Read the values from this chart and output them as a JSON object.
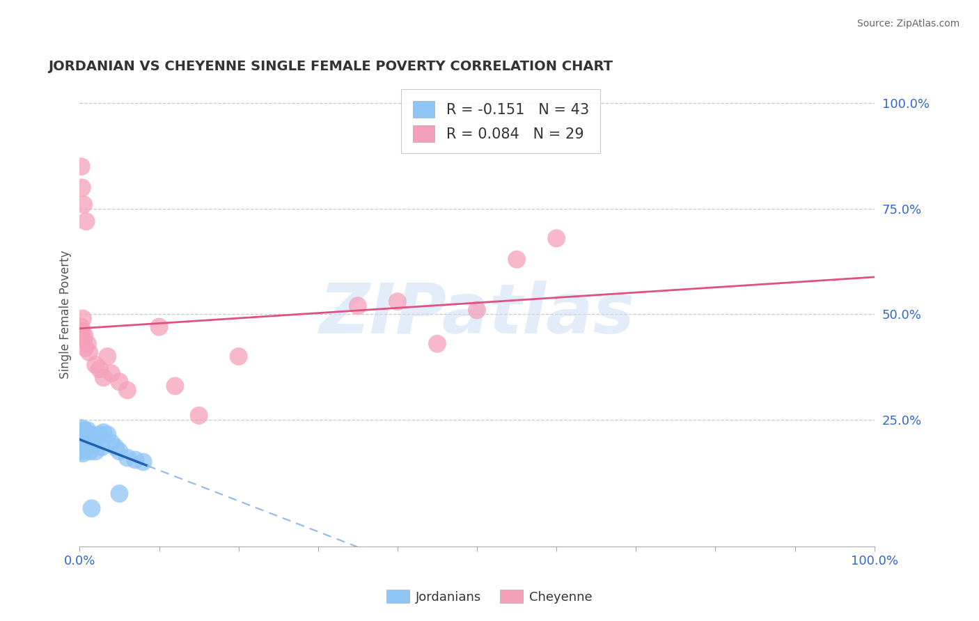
{
  "title": "JORDANIAN VS CHEYENNE SINGLE FEMALE POVERTY CORRELATION CHART",
  "source": "Source: ZipAtlas.com",
  "ylabel": "Single Female Poverty",
  "watermark": "ZIPatlas",
  "legend_blue_r": "-0.151",
  "legend_blue_n": "43",
  "legend_pink_r": "0.084",
  "legend_pink_n": "29",
  "blue_color": "#8fc5f5",
  "pink_color": "#f5a0ba",
  "trend_blue_solid": "#2060b0",
  "trend_blue_dashed": "#90b8e8",
  "trend_pink": "#e05080",
  "blue_x": [
    0.001,
    0.002,
    0.002,
    0.003,
    0.003,
    0.003,
    0.004,
    0.004,
    0.005,
    0.005,
    0.005,
    0.006,
    0.006,
    0.006,
    0.007,
    0.007,
    0.008,
    0.008,
    0.009,
    0.01,
    0.01,
    0.011,
    0.012,
    0.013,
    0.014,
    0.015,
    0.016,
    0.018,
    0.02,
    0.022,
    0.025,
    0.028,
    0.03,
    0.035,
    0.04,
    0.045,
    0.05,
    0.06,
    0.07,
    0.08,
    0.003,
    0.015,
    0.05
  ],
  "blue_y": [
    0.185,
    0.22,
    0.195,
    0.21,
    0.23,
    0.175,
    0.195,
    0.17,
    0.19,
    0.22,
    0.21,
    0.2,
    0.18,
    0.225,
    0.2,
    0.22,
    0.21,
    0.185,
    0.2,
    0.21,
    0.225,
    0.185,
    0.2,
    0.175,
    0.21,
    0.215,
    0.185,
    0.195,
    0.175,
    0.205,
    0.215,
    0.185,
    0.22,
    0.215,
    0.195,
    0.185,
    0.175,
    0.16,
    0.155,
    0.15,
    0.195,
    0.04,
    0.075
  ],
  "pink_x": [
    0.002,
    0.003,
    0.004,
    0.005,
    0.006,
    0.007,
    0.01,
    0.012,
    0.02,
    0.025,
    0.03,
    0.035,
    0.04,
    0.05,
    0.06,
    0.1,
    0.12,
    0.15,
    0.2,
    0.35,
    0.4,
    0.45,
    0.5,
    0.55,
    0.6,
    0.002,
    0.003,
    0.005,
    0.008
  ],
  "pink_y": [
    0.47,
    0.46,
    0.49,
    0.44,
    0.45,
    0.42,
    0.43,
    0.41,
    0.38,
    0.37,
    0.35,
    0.4,
    0.36,
    0.34,
    0.32,
    0.47,
    0.33,
    0.26,
    0.4,
    0.52,
    0.53,
    0.43,
    0.51,
    0.63,
    0.68,
    0.85,
    0.8,
    0.76,
    0.72
  ],
  "xlim": [
    0.0,
    1.0
  ],
  "ylim": [
    -0.05,
    1.05
  ],
  "bg_color": "#ffffff",
  "grid_color": "#c8c8c8",
  "xtick_positions": [
    0.0,
    0.1,
    0.2,
    0.3,
    0.4,
    0.5,
    0.6,
    0.7,
    0.8,
    0.9,
    1.0
  ],
  "ytick_positions": [
    0.25,
    0.5,
    0.75,
    1.0
  ]
}
